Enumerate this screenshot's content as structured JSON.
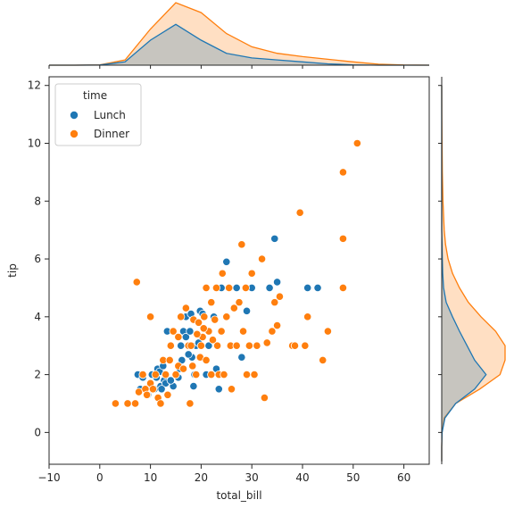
{
  "chart_data": {
    "type": "scatter",
    "subtype": "jointplot-with-marginal-kde",
    "xlabel": "total_bill",
    "ylabel": "tip",
    "xlim": [
      -10,
      65
    ],
    "ylim": [
      -1.1,
      12.3
    ],
    "xticks": [
      -10,
      0,
      10,
      20,
      30,
      40,
      50,
      60
    ],
    "yticks": [
      0,
      2,
      4,
      6,
      8,
      10,
      12
    ],
    "grid": false,
    "legend": {
      "title": "time",
      "placement": "upper-left"
    },
    "series": [
      {
        "name": "Lunch",
        "color": "#1f77b4",
        "points": [
          [
            7.5,
            2.0
          ],
          [
            8.5,
            1.9
          ],
          [
            9.0,
            1.5
          ],
          [
            10.0,
            1.6
          ],
          [
            10.3,
            2.0
          ],
          [
            10.8,
            1.5
          ],
          [
            11.2,
            1.9
          ],
          [
            11.4,
            2.2
          ],
          [
            11.8,
            2.1
          ],
          [
            12.0,
            1.6
          ],
          [
            12.5,
            2.3
          ],
          [
            12.7,
            1.8
          ],
          [
            13.0,
            2.0
          ],
          [
            13.3,
            3.5
          ],
          [
            13.0,
            1.7
          ],
          [
            14.5,
            1.6
          ],
          [
            15.0,
            2.0
          ],
          [
            15.5,
            1.9
          ],
          [
            16.0,
            3.0
          ],
          [
            16.2,
            2.5
          ],
          [
            16.5,
            3.5
          ],
          [
            17.0,
            3.3
          ],
          [
            17.0,
            4.0
          ],
          [
            17.8,
            3.5
          ],
          [
            18.0,
            4.1
          ],
          [
            18.2,
            2.6
          ],
          [
            18.5,
            1.6
          ],
          [
            18.7,
            2.0
          ],
          [
            19.0,
            3.0
          ],
          [
            19.8,
            4.2
          ],
          [
            20.3,
            4.1
          ],
          [
            21.0,
            2.0
          ],
          [
            21.5,
            3.0
          ],
          [
            22.5,
            4.0
          ],
          [
            23.0,
            2.2
          ],
          [
            23.5,
            1.5
          ],
          [
            24.0,
            5.0
          ],
          [
            25.0,
            5.9
          ],
          [
            27.0,
            5.0
          ],
          [
            28.0,
            2.6
          ],
          [
            29.0,
            4.2
          ],
          [
            30.0,
            5.0
          ],
          [
            33.5,
            5.0
          ],
          [
            34.5,
            6.7
          ],
          [
            35.0,
            5.2
          ],
          [
            41.0,
            5.0
          ],
          [
            43.0,
            5.0
          ],
          [
            8.0,
            1.5
          ],
          [
            9.5,
            1.3
          ],
          [
            12.2,
            1.5
          ],
          [
            14.0,
            1.8
          ],
          [
            15.8,
            2.2
          ],
          [
            17.5,
            2.7
          ],
          [
            19.5,
            3.1
          ]
        ]
      },
      {
        "name": "Dinner",
        "color": "#ff7f0e",
        "points": [
          [
            3.1,
            1.0
          ],
          [
            5.5,
            1.0
          ],
          [
            7.0,
            1.0
          ],
          [
            7.3,
            5.2
          ],
          [
            7.7,
            1.4
          ],
          [
            8.5,
            2.0
          ],
          [
            9.0,
            1.5
          ],
          [
            9.3,
            1.3
          ],
          [
            10.0,
            4.0
          ],
          [
            10.0,
            1.7
          ],
          [
            10.5,
            1.5
          ],
          [
            11.0,
            2.0
          ],
          [
            11.5,
            1.2
          ],
          [
            12.0,
            1.0
          ],
          [
            12.5,
            2.5
          ],
          [
            13.0,
            2.0
          ],
          [
            13.4,
            1.3
          ],
          [
            13.8,
            2.5
          ],
          [
            14.0,
            3.0
          ],
          [
            14.5,
            3.5
          ],
          [
            15.0,
            2.0
          ],
          [
            15.5,
            2.3
          ],
          [
            16.0,
            4.0
          ],
          [
            16.5,
            2.2
          ],
          [
            17.0,
            4.3
          ],
          [
            17.5,
            3.0
          ],
          [
            17.8,
            1.0
          ],
          [
            18.0,
            3.0
          ],
          [
            18.3,
            2.3
          ],
          [
            18.5,
            3.9
          ],
          [
            19.0,
            2.0
          ],
          [
            19.5,
            3.8
          ],
          [
            19.8,
            2.6
          ],
          [
            20.0,
            3.0
          ],
          [
            20.3,
            3.3
          ],
          [
            20.6,
            4.0
          ],
          [
            21.0,
            2.5
          ],
          [
            21.0,
            5.0
          ],
          [
            21.5,
            3.5
          ],
          [
            22.0,
            2.0
          ],
          [
            22.3,
            3.2
          ],
          [
            22.7,
            3.9
          ],
          [
            23.0,
            5.0
          ],
          [
            23.2,
            3.0
          ],
          [
            23.5,
            2.0
          ],
          [
            24.0,
            3.5
          ],
          [
            24.5,
            2.0
          ],
          [
            25.0,
            4.0
          ],
          [
            25.5,
            5.0
          ],
          [
            25.8,
            3.0
          ],
          [
            26.0,
            1.5
          ],
          [
            26.5,
            4.3
          ],
          [
            27.0,
            3.0
          ],
          [
            27.5,
            4.5
          ],
          [
            28.0,
            6.5
          ],
          [
            28.3,
            3.5
          ],
          [
            28.8,
            5.0
          ],
          [
            29.0,
            2.0
          ],
          [
            29.5,
            3.0
          ],
          [
            30.0,
            5.5
          ],
          [
            30.5,
            2.0
          ],
          [
            31.0,
            3.0
          ],
          [
            32.0,
            6.0
          ],
          [
            32.5,
            1.2
          ],
          [
            33.0,
            3.1
          ],
          [
            34.0,
            3.5
          ],
          [
            34.5,
            4.5
          ],
          [
            35.0,
            3.7
          ],
          [
            35.5,
            4.7
          ],
          [
            38.0,
            3.0
          ],
          [
            38.5,
            3.0
          ],
          [
            39.5,
            7.6
          ],
          [
            40.5,
            3.0
          ],
          [
            41.0,
            4.0
          ],
          [
            44.0,
            2.5
          ],
          [
            45.0,
            3.5
          ],
          [
            48.0,
            9.0
          ],
          [
            48.0,
            6.7
          ],
          [
            48.0,
            5.0
          ],
          [
            50.8,
            10.0
          ],
          [
            22.0,
            4.5
          ],
          [
            24.2,
            5.5
          ],
          [
            20.5,
            3.6
          ],
          [
            19.2,
            3.4
          ],
          [
            15.5,
            3.3
          ]
        ]
      }
    ],
    "marginal_x_kde": {
      "x": [
        -10,
        -5,
        0,
        5,
        10,
        15,
        20,
        25,
        30,
        35,
        40,
        45,
        50,
        55,
        60,
        65
      ],
      "Lunch": [
        0,
        0,
        0.003,
        0.05,
        0.38,
        0.62,
        0.38,
        0.18,
        0.11,
        0.08,
        0.05,
        0.02,
        0.005,
        0,
        0,
        0
      ],
      "Dinner": [
        0,
        0,
        0.004,
        0.08,
        0.55,
        0.95,
        0.8,
        0.48,
        0.28,
        0.18,
        0.13,
        0.09,
        0.05,
        0.015,
        0.003,
        0
      ]
    },
    "marginal_y_kde": {
      "y": [
        -1,
        -0.5,
        0,
        0.5,
        1,
        1.5,
        2,
        2.5,
        3,
        3.5,
        4,
        4.5,
        5,
        5.5,
        6,
        6.5,
        7,
        8,
        9,
        10,
        11,
        12
      ],
      "Lunch": [
        0,
        0,
        0.005,
        0.05,
        0.22,
        0.52,
        0.7,
        0.52,
        0.4,
        0.28,
        0.17,
        0.07,
        0.03,
        0.015,
        0.01,
        0.005,
        0,
        0,
        0,
        0,
        0,
        0
      ],
      "Dinner": [
        0,
        0,
        0.005,
        0.04,
        0.22,
        0.6,
        0.92,
        1.0,
        1.0,
        0.85,
        0.62,
        0.42,
        0.28,
        0.17,
        0.1,
        0.06,
        0.04,
        0.02,
        0.01,
        0.005,
        0.002,
        0
      ]
    }
  }
}
